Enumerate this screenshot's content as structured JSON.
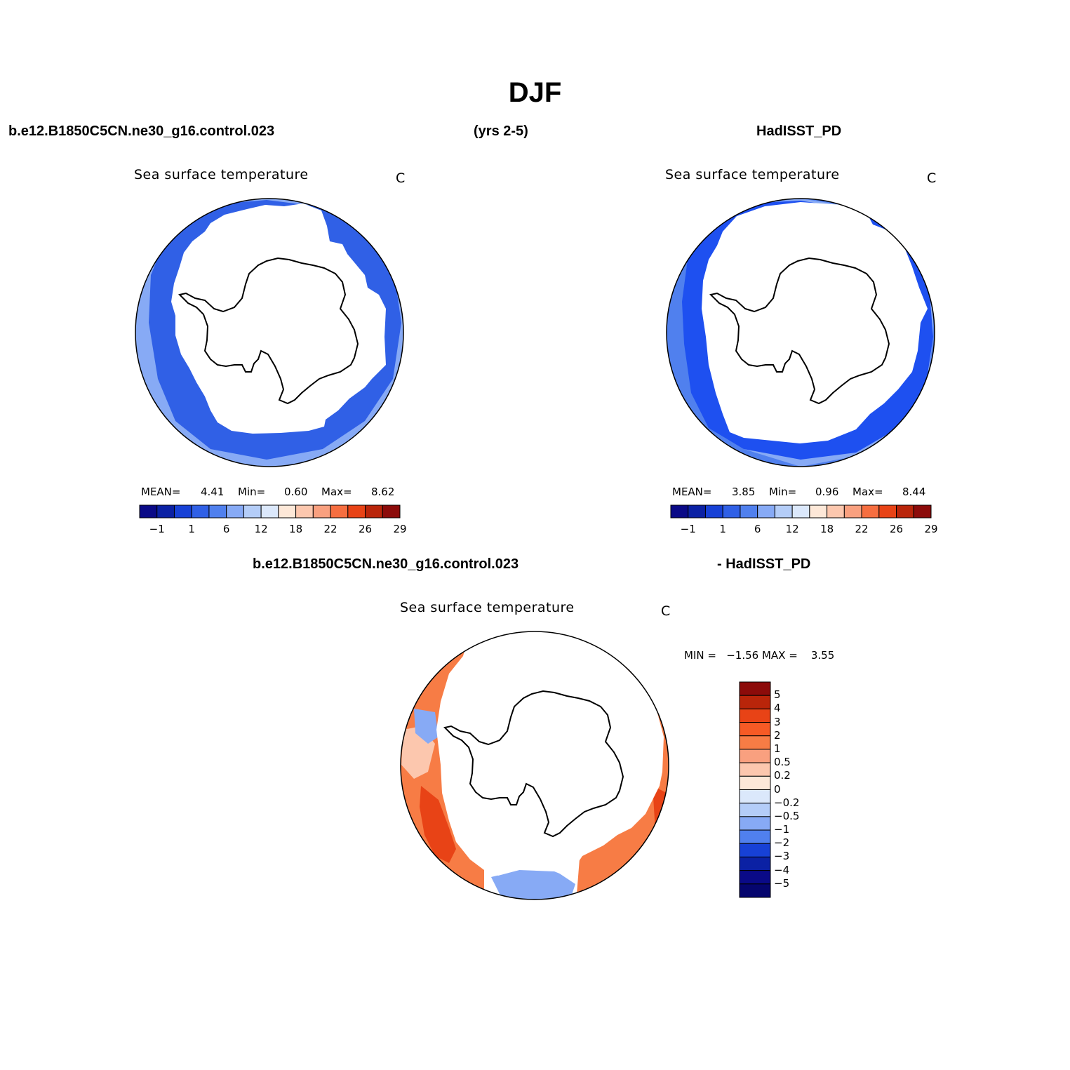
{
  "title": "DJF",
  "header": {
    "case_name": "b.e12.B1850C5CN.ne30_g16.control.023",
    "years": "(yrs 2-5)",
    "obs_name": "HadISST_PD",
    "diff_case_name": "b.e12.B1850C5CN.ne30_g16.control.023",
    "diff_obs_name": "- HadISST_PD"
  },
  "panels": [
    {
      "title": "Sea surface temperature",
      "units": "C",
      "stats": {
        "mean_label": "MEAN=",
        "mean": "4.41",
        "min_label": "Min=",
        "min": "0.60",
        "max_label": "Max=",
        "max": "8.62"
      },
      "colorbar": {
        "colors": [
          "#0a0a87",
          "#0b21a4",
          "#1741d6",
          "#3060e6",
          "#5080ee",
          "#87aaf5",
          "#b4cdf8",
          "#dbe8fb",
          "#fde8d8",
          "#fcc7ae",
          "#f9a07f",
          "#f66e40",
          "#e84316",
          "#b9250a",
          "#8c0b0a"
        ],
        "labels": [
          "−1",
          "1",
          "6",
          "12",
          "18",
          "22",
          "26",
          "29"
        ]
      }
    },
    {
      "title": "Sea surface temperature",
      "units": "C",
      "stats": {
        "mean_label": "MEAN=",
        "mean": "3.85",
        "min_label": "Min=",
        "min": "0.96",
        "max_label": "Max=",
        "max": "8.44"
      },
      "colorbar": {
        "colors": [
          "#0a0a87",
          "#0b21a4",
          "#1741d6",
          "#3060e6",
          "#5080ee",
          "#87aaf5",
          "#b4cdf8",
          "#dbe8fb",
          "#fde8d8",
          "#fcc7ae",
          "#f9a07f",
          "#f66e40",
          "#e84316",
          "#b9250a",
          "#8c0b0a"
        ],
        "labels": [
          "−1",
          "1",
          "6",
          "12",
          "18",
          "22",
          "26",
          "29"
        ]
      }
    },
    {
      "title": "Sea surface temperature",
      "units": "C",
      "stats_line": "MIN =   −1.56 MAX =    3.55",
      "colorbar": {
        "colors": [
          "#8c0b0a",
          "#b9250a",
          "#e84316",
          "#f65a25",
          "#f77c45",
          "#f9a07f",
          "#fcc7ae",
          "#fde8d8",
          "#dbe8fb",
          "#b4cdf8",
          "#87aaf5",
          "#5080ee",
          "#1741d6",
          "#0b21a4",
          "#0a0a87",
          "#05056e"
        ],
        "labels": [
          "5",
          "4",
          "3",
          "2",
          "1",
          "0.5",
          "0.2",
          "0",
          "−0.2",
          "−0.5",
          "−1",
          "−2",
          "−3",
          "−4",
          "−5"
        ]
      }
    }
  ],
  "map_colors": {
    "panel1_outer": "#87aaf5",
    "panel1_inner": "#3060e6",
    "panel2_outer": "#5080ee",
    "panel2_mid": "#87aaf5",
    "panel2_inner": "#1e50f0",
    "diff_main": "#f77c45",
    "diff_dark": "#e84316",
    "diff_light": "#fcc7ae",
    "diff_blue": "#87aaf5"
  }
}
